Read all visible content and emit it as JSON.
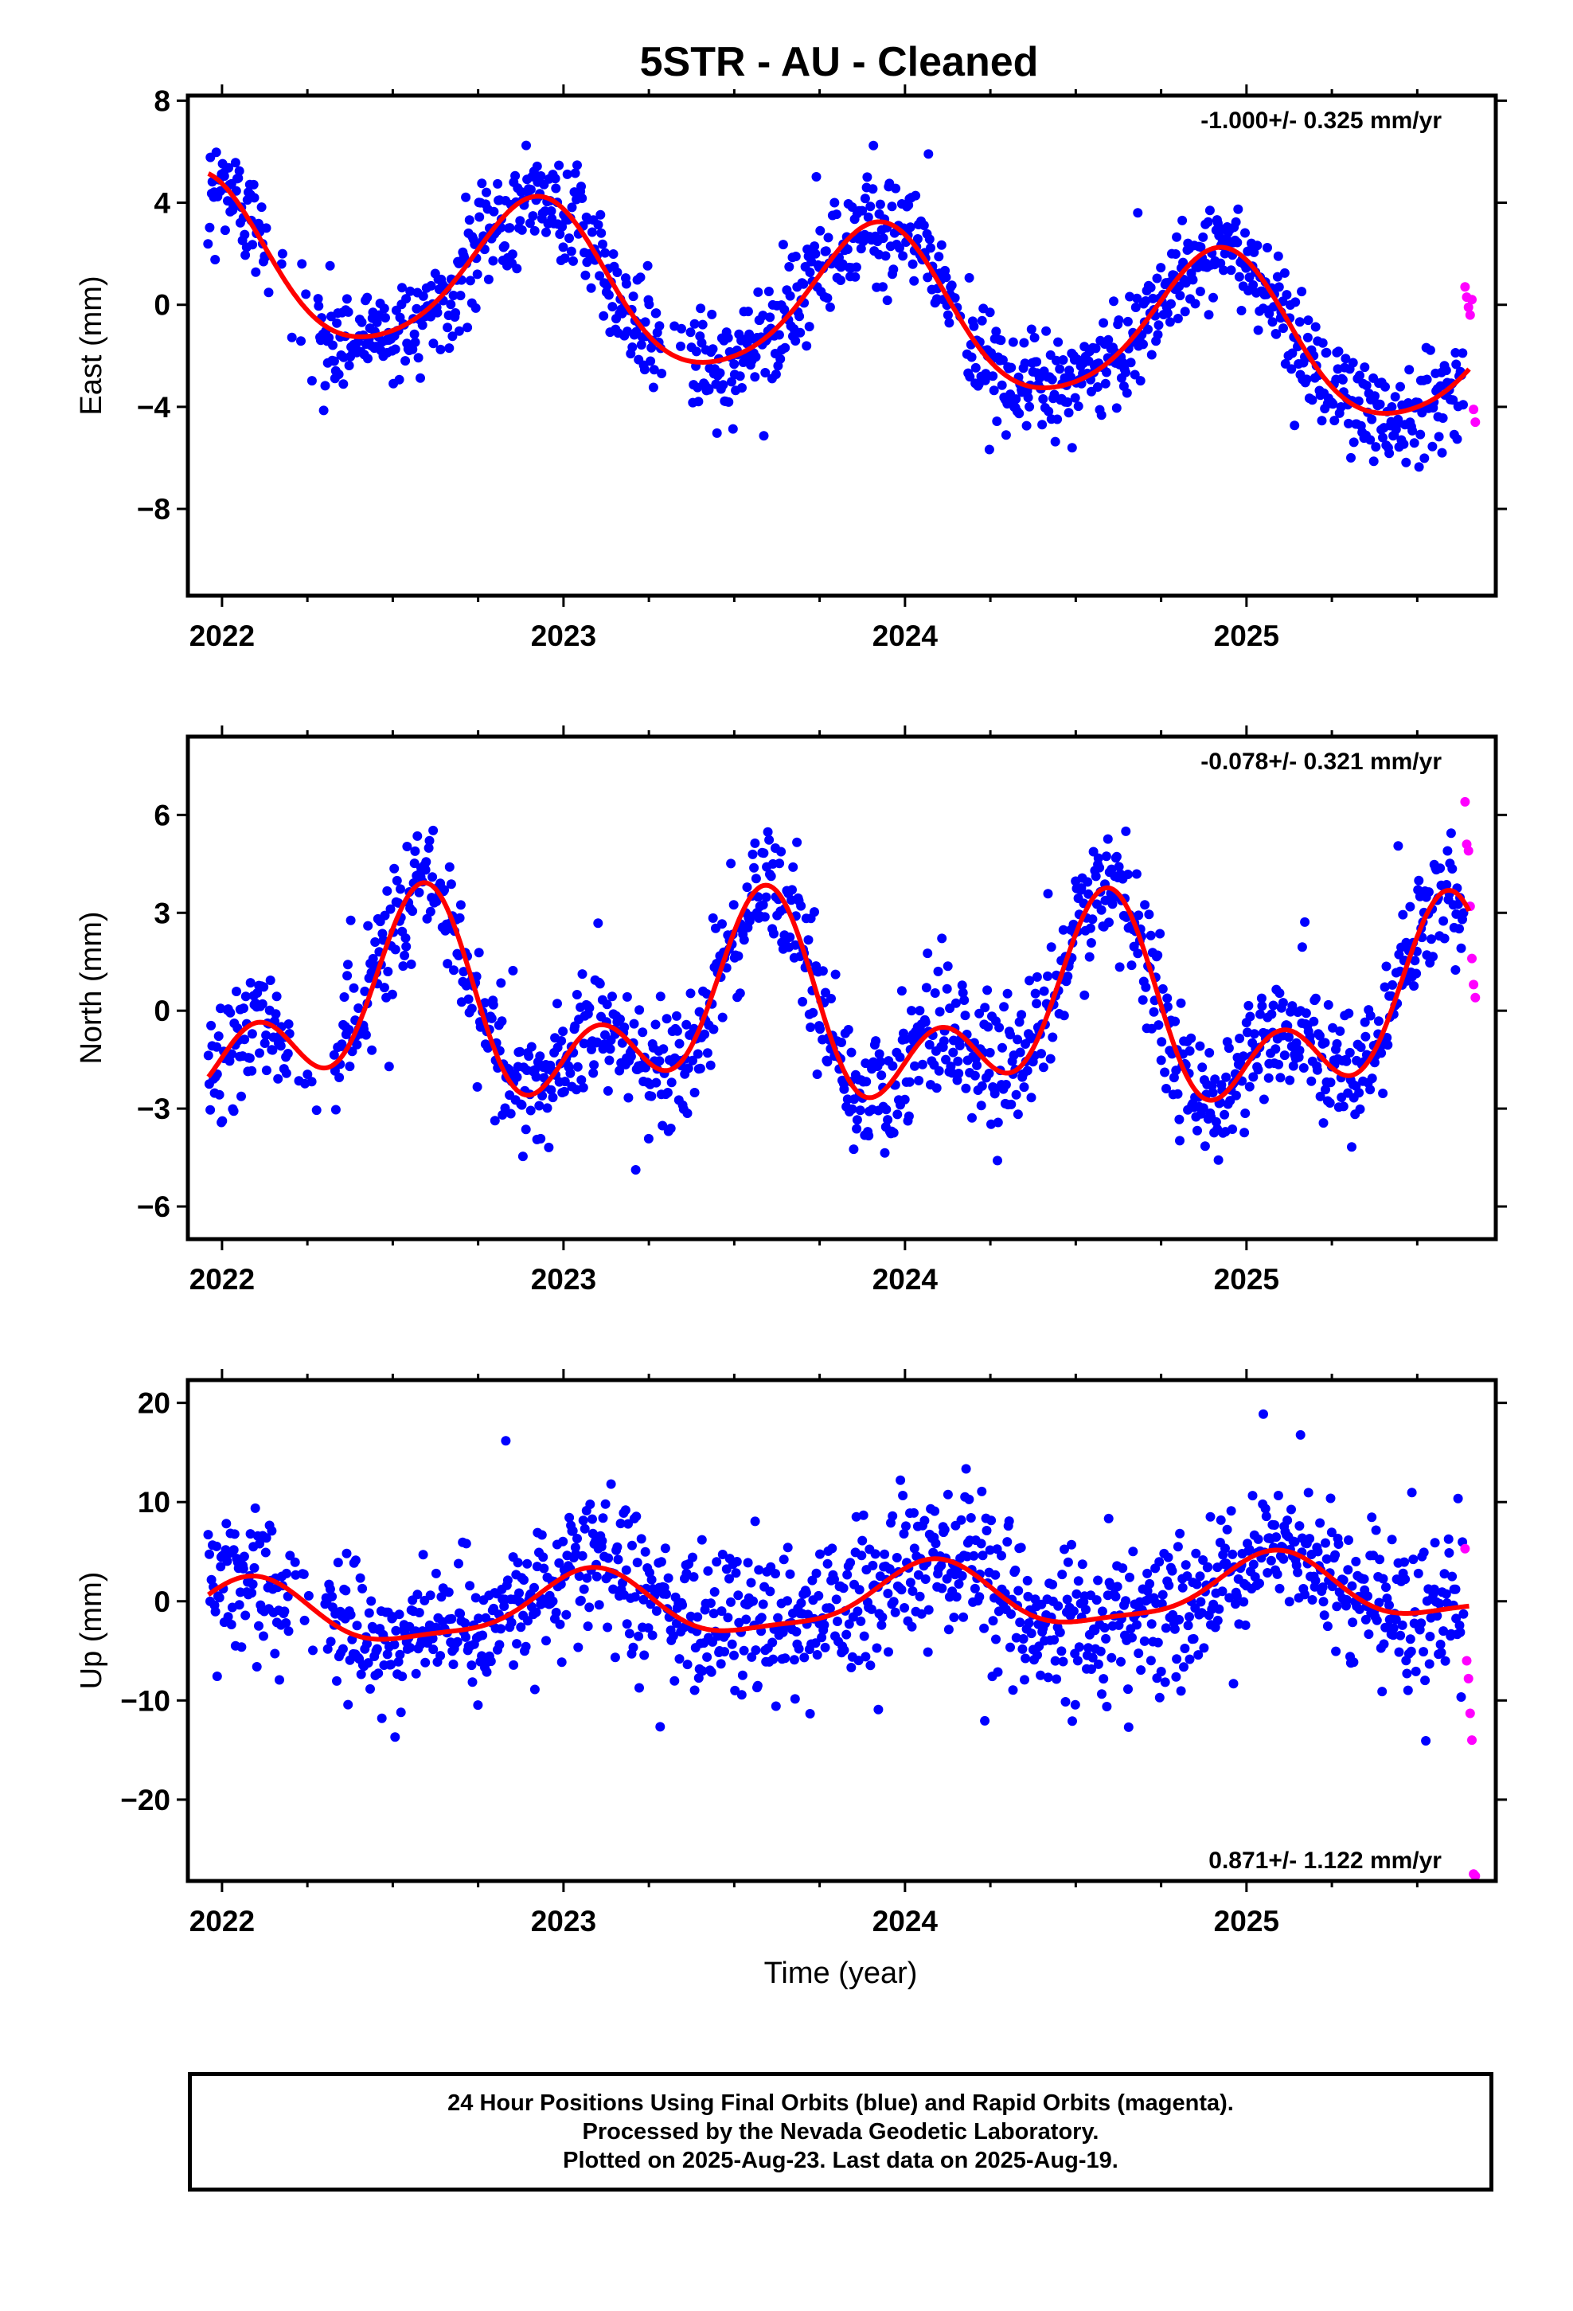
{
  "figure": {
    "title": "5STR  - AU - Cleaned",
    "xlabel": "Time (year)",
    "caption": [
      "24 Hour Positions Using Final Orbits (blue) and Rapid Orbits (magenta).",
      "Processed by the Nevada Geodetic Laboratory.",
      "Plotted on 2025-Aug-23. Last data on 2025-Aug-19."
    ]
  },
  "colors": {
    "final": "#0000ff",
    "rapid": "#ff00ff",
    "model": "#ff0000",
    "axis": "#000000"
  },
  "chart_data": [
    {
      "type": "scatter",
      "ylabel": "East (mm)",
      "rate": "-1.000+/- 0.325 mm/yr",
      "rate_position": "top-right",
      "xlim": [
        2021.9,
        2025.73
      ],
      "ylim": [
        -11.4,
        8.2
      ],
      "xticks": [
        2022,
        2023,
        2024,
        2025
      ],
      "xtick_labels": [
        "2022",
        "2023",
        "2024",
        "2025"
      ],
      "yticks": [
        -8,
        -4,
        0,
        4,
        8
      ],
      "ytick_labels": [
        "−8",
        "−4",
        "0",
        "4",
        "8"
      ],
      "model": {
        "a": 1.8,
        "b": -1.0,
        "t0": 2022.0,
        "amp1": 3.0,
        "phase1": 2022.92,
        "amp2": 0.4,
        "phase2": 2022.45
      },
      "scatter": {
        "noise": 1.0,
        "n_points": 1250,
        "gaps": [
          [
            2022.13,
            2022.28
          ],
          [
            2023.29,
            2023.37
          ],
          [
            2024.14,
            2024.18
          ]
        ]
      },
      "rapid": [
        [
          2025.64,
          0.7
        ],
        [
          2025.645,
          0.3
        ],
        [
          2025.65,
          -0.1
        ],
        [
          2025.655,
          -0.4
        ],
        [
          2025.66,
          0.2
        ],
        [
          2025.665,
          -4.1
        ],
        [
          2025.67,
          -4.6
        ]
      ]
    },
    {
      "type": "scatter",
      "ylabel": "North (mm)",
      "rate": "-0.078+/- 0.321 mm/yr",
      "rate_position": "top-right",
      "xlim": [
        2021.9,
        2025.73
      ],
      "ylim": [
        -7.0,
        8.4
      ],
      "xticks": [
        2022,
        2023,
        2024,
        2025
      ],
      "xtick_labels": [
        "2022",
        "2023",
        "2024",
        "2025"
      ],
      "yticks": [
        -6,
        -3,
        0,
        3,
        6
      ],
      "ytick_labels": [
        "−6",
        "−3",
        "0",
        "3",
        "6"
      ],
      "model": {
        "a": 0.0,
        "b": -0.078,
        "t0": 2022.0,
        "amp1": 2.2,
        "phase1": 2022.57,
        "amp2": 1.8,
        "phase2": 2022.6
      },
      "scatter": {
        "noise": 0.95,
        "n_points": 1250,
        "gaps": [
          [
            2022.2,
            2022.33
          ]
        ]
      },
      "rapid": [
        [
          2025.64,
          6.4
        ],
        [
          2025.645,
          5.1
        ],
        [
          2025.65,
          4.9
        ],
        [
          2025.655,
          3.2
        ],
        [
          2025.66,
          1.6
        ],
        [
          2025.665,
          0.8
        ],
        [
          2025.67,
          0.4
        ]
      ]
    },
    {
      "type": "scatter",
      "ylabel": "Up (mm)",
      "rate": "0.871+/- 1.122 mm/yr",
      "rate_position": "bottom-right",
      "xlim": [
        2021.9,
        2025.73
      ],
      "ylim": [
        -28.2,
        22.3
      ],
      "xticks": [
        2022,
        2023,
        2024,
        2025
      ],
      "xtick_labels": [
        "2022",
        "2023",
        "2024",
        "2025"
      ],
      "yticks": [
        -20,
        -10,
        0,
        10,
        20
      ],
      "ytick_labels": [
        "−20",
        "−10",
        "0",
        "10",
        "20"
      ],
      "model": {
        "a": -1.6,
        "b": 0.871,
        "t0": 2022.0,
        "amp1": 3.2,
        "phase1": 2023.07,
        "amp2": 0.9,
        "phase2": 2022.6
      },
      "scatter": {
        "noise": 3.6,
        "n_points": 1250,
        "gaps": [
          [
            2022.2,
            2022.3
          ]
        ]
      },
      "rapid": [
        [
          2025.64,
          5.3
        ],
        [
          2025.645,
          -6.0
        ],
        [
          2025.65,
          -7.8
        ],
        [
          2025.655,
          -11.3
        ],
        [
          2025.66,
          -14.0
        ],
        [
          2025.665,
          -27.5
        ],
        [
          2025.67,
          -27.7
        ]
      ]
    }
  ]
}
